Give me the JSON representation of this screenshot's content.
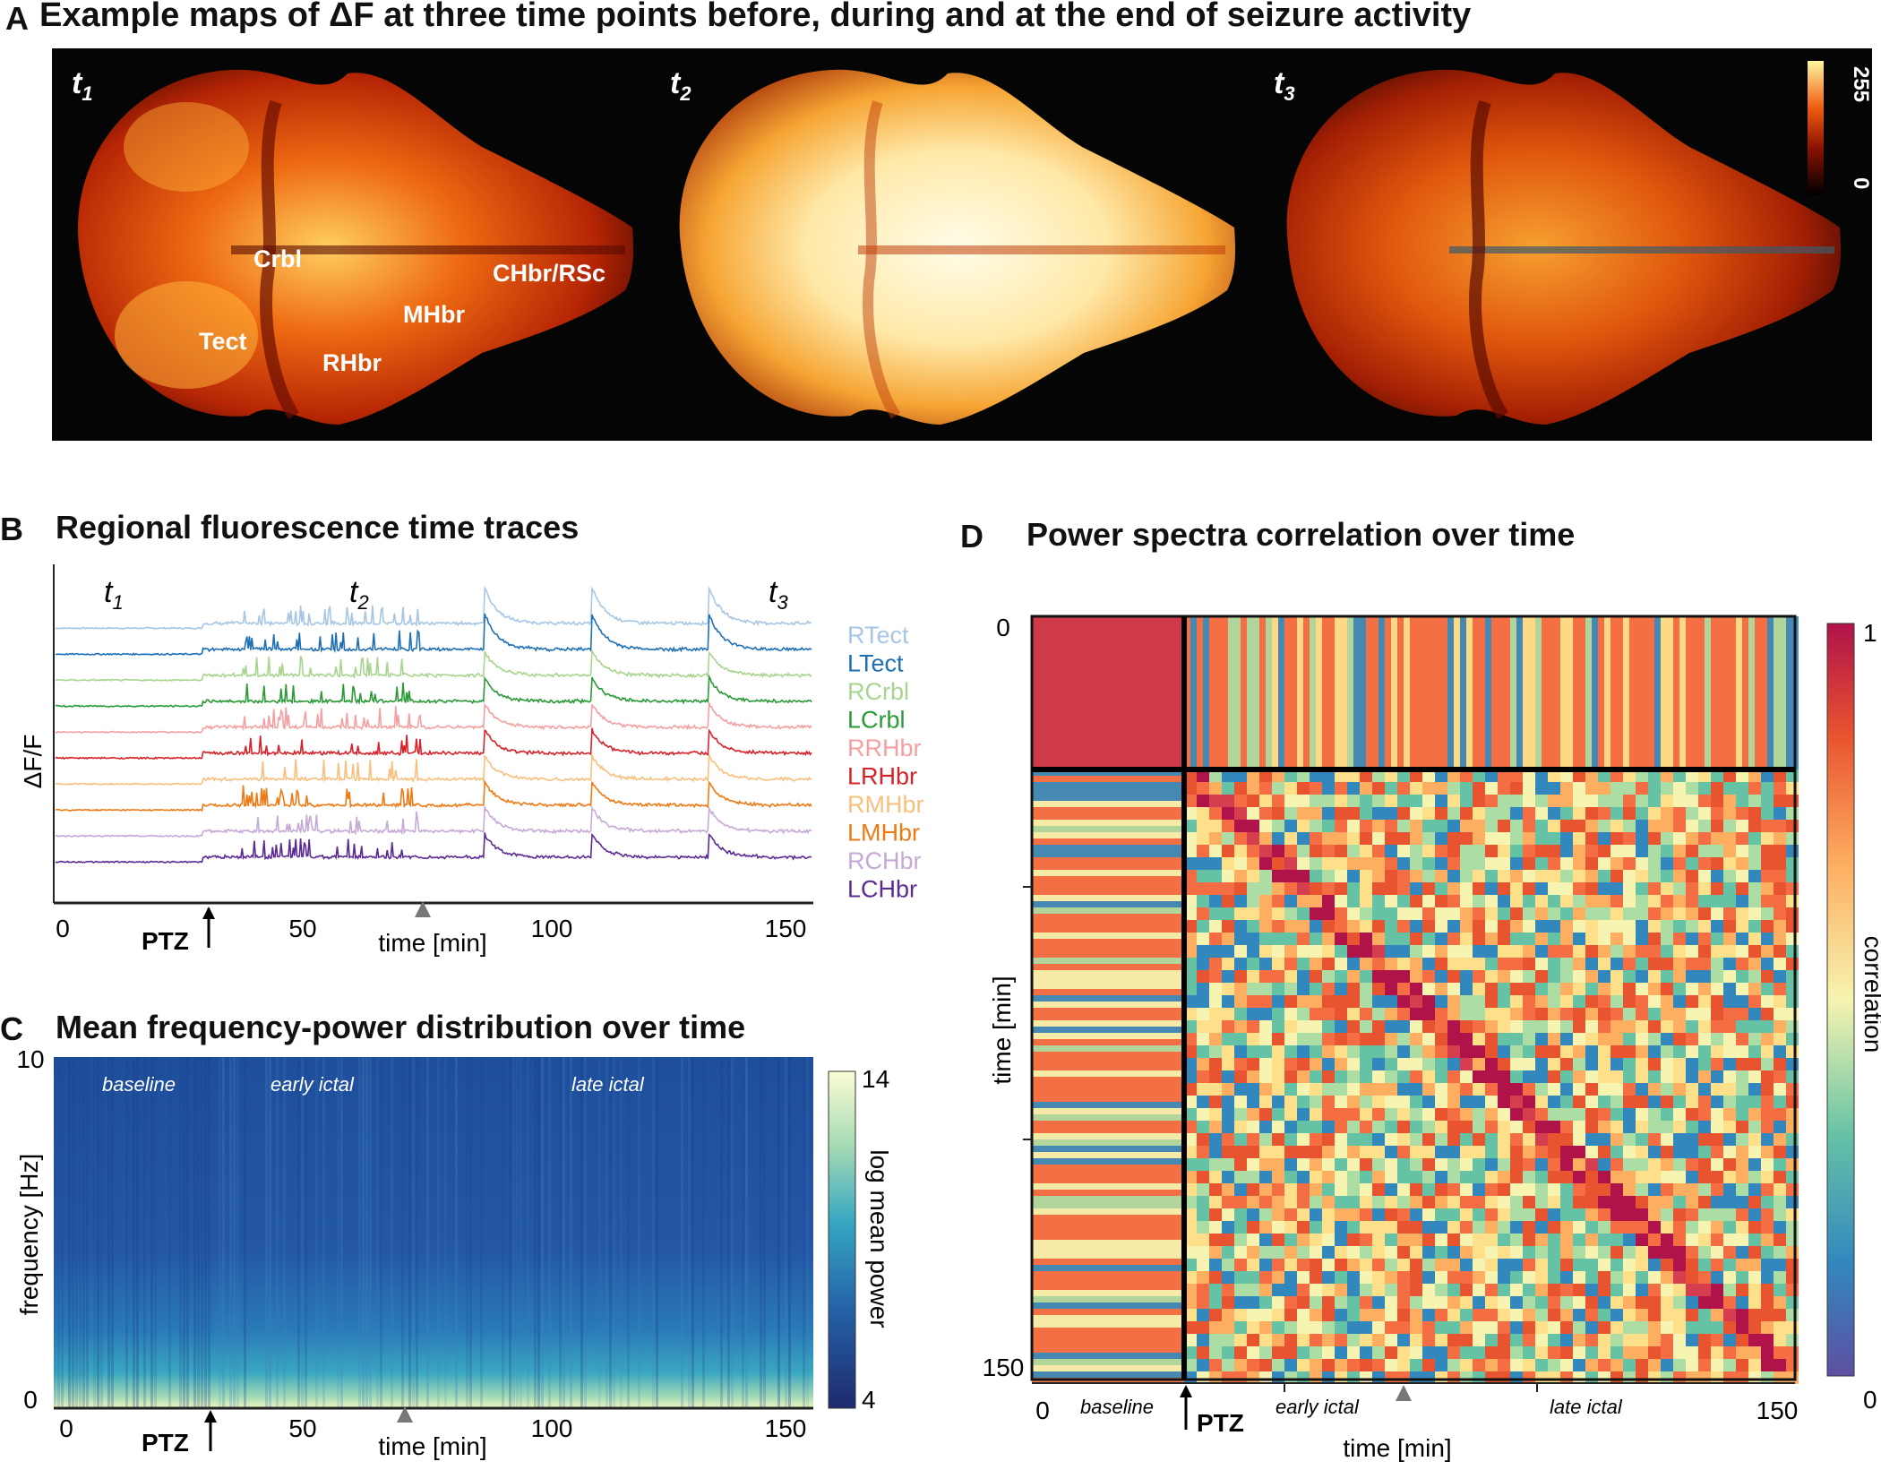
{
  "panelA": {
    "letter": "A",
    "title": "Example maps of ΔF at three time points before, during and at the end of seizure activity",
    "maps": [
      {
        "label": "t",
        "sub": "1"
      },
      {
        "label": "t",
        "sub": "2"
      },
      {
        "label": "t",
        "sub": "3"
      }
    ],
    "regions": [
      "Crbl",
      "Tect",
      "RHbr",
      "MHbr",
      "CHbr/RSc"
    ],
    "colorbar": {
      "max": "255",
      "min": "0"
    }
  },
  "panelB": {
    "letter": "B",
    "title": "Regional fluorescence time traces",
    "time_marks": [
      {
        "label": "t",
        "sub": "1"
      },
      {
        "label": "t",
        "sub": "2"
      },
      {
        "label": "t",
        "sub": "3"
      }
    ],
    "ylabel": "ΔF/F",
    "xlabel": "time [min]",
    "xticks": [
      "0",
      "50",
      "100",
      "150"
    ],
    "ptz": "PTZ",
    "legend": [
      {
        "name": "RTect",
        "color": "#a7c6e4"
      },
      {
        "name": "LTect",
        "color": "#1f6fb4"
      },
      {
        "name": "RCrbl",
        "color": "#a8d48e"
      },
      {
        "name": "LCrbl",
        "color": "#2a9a36"
      },
      {
        "name": "RRHbr",
        "color": "#f4a0a2"
      },
      {
        "name": "LRHbr",
        "color": "#d8222a"
      },
      {
        "name": "RMHbr",
        "color": "#f8c07e"
      },
      {
        "name": "LMHbr",
        "color": "#ef7a14"
      },
      {
        "name": "RCHbr",
        "color": "#c6aad6"
      },
      {
        "name": "LCHbr",
        "color": "#5b2a93"
      }
    ]
  },
  "panelC": {
    "letter": "C",
    "title": "Mean frequency-power distribution over time",
    "ylabel": "frequency [Hz]",
    "yticks": [
      "10",
      "0"
    ],
    "xlabel": "time [min]",
    "xticks": [
      "0",
      "50",
      "100",
      "150"
    ],
    "ptz": "PTZ",
    "phases": [
      "baseline",
      "early ictal",
      "late ictal"
    ],
    "colorbar": {
      "label": "log mean power",
      "max": "14",
      "min": "4"
    }
  },
  "panelD": {
    "letter": "D",
    "title": "Power spectra correlation over time",
    "ylabel": "time [min]",
    "yticks": [
      "0",
      "150"
    ],
    "xlabel": "time [min]",
    "xticks": [
      "0",
      "150"
    ],
    "ptz": "PTZ",
    "phases": [
      "baseline",
      "early ictal",
      "late ictal"
    ],
    "colorbar": {
      "label": "correlation",
      "max": "1",
      "min": "0"
    }
  },
  "chart_data": [
    {
      "type": "line",
      "title": "Regional fluorescence time traces",
      "xlabel": "time [min]",
      "ylabel": "ΔF/F",
      "xlim": [
        0,
        155
      ],
      "ptz_time": 30,
      "series": [
        "RTect",
        "LTect",
        "RCrbl",
        "LCrbl",
        "RRHbr",
        "LRHbr",
        "RMHbr",
        "LMHbr",
        "RCHbr",
        "LCHbr"
      ],
      "major_peaks": [
        88,
        110,
        134
      ]
    },
    {
      "type": "heatmap",
      "title": "Mean frequency-power distribution over time",
      "xlabel": "time [min]",
      "ylabel": "frequency [Hz]",
      "xlim": [
        0,
        150
      ],
      "ylim": [
        0,
        10
      ],
      "zlim": [
        4,
        14
      ],
      "zlabel": "log mean power"
    },
    {
      "type": "heatmap",
      "title": "Power spectra correlation over time",
      "xlabel": "time [min]",
      "ylabel": "time [min]",
      "xlim": [
        0,
        150
      ],
      "ylim": [
        0,
        150
      ],
      "zlim": [
        0,
        1
      ],
      "zlabel": "correlation"
    }
  ]
}
